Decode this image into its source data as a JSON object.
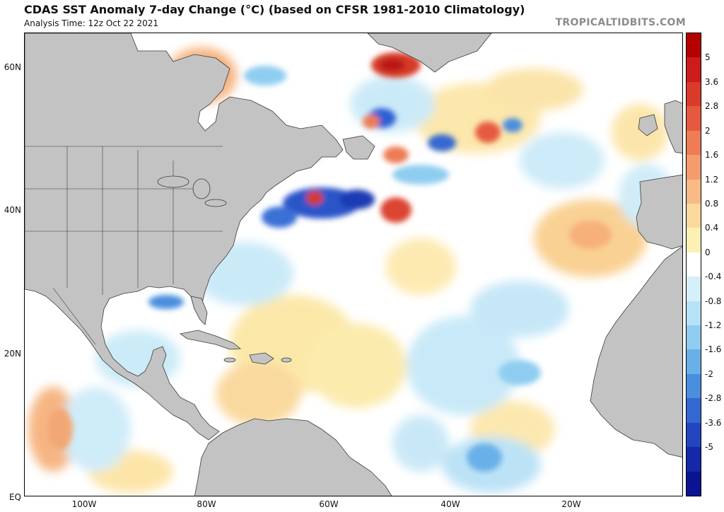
{
  "header": {
    "title": "CDAS SST Anomaly 7-day Change (°C) (based on CFSR 1981-2010 Climatology)",
    "subtitle": "Analysis Time: 12z Oct 22 2021",
    "brand": "TROPICALTIDBITS.COM"
  },
  "map": {
    "latitude_labels": [
      "60N",
      "40N",
      "20N",
      "EQ"
    ],
    "longitude_labels": [
      "100W",
      "80W",
      "60W",
      "40W",
      "20W"
    ],
    "colors": {
      "land": "#c3c3c3",
      "ocean_neutral": "#ffffff",
      "borders": "#3a3a3a"
    }
  },
  "colorbar": {
    "labels": [
      "5",
      "3.6",
      "2.8",
      "2",
      "1.6",
      "1.2",
      "0.8",
      "0.4",
      "0",
      "-0.4",
      "-0.8",
      "-1.2",
      "-1.6",
      "-2",
      "-2.8",
      "-3.6",
      "-5"
    ],
    "colors": [
      "#b50000",
      "#cc1b1b",
      "#d93a2a",
      "#e55a3f",
      "#ee7c55",
      "#f49c6d",
      "#f8bb86",
      "#fbd99c",
      "#fdf0b3",
      "#ffffff",
      "#d6f0fb",
      "#b5e2f6",
      "#8fcdf0",
      "#69b0e8",
      "#4a8ede",
      "#3468d0",
      "#2246bf",
      "#1428a8",
      "#0a1490"
    ]
  }
}
